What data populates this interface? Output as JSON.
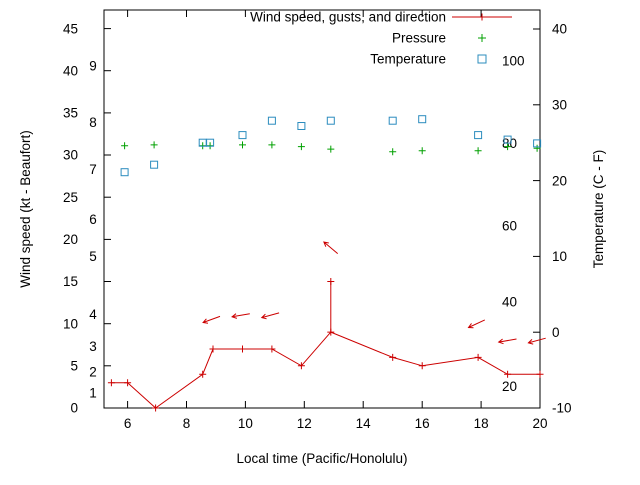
{
  "chart_data": {
    "type": "line",
    "title": "",
    "xlabel": "Local time (Pacific/Honolulu)",
    "ylabel_left": "Wind speed (kt - Beaufort)",
    "ylabel_right": "Temperature (C - F)",
    "legend_position": "top-right-inside",
    "grid": false,
    "legend": [
      {
        "label": "Wind speed, gusts, and direction",
        "marker": "line-plus",
        "color": "#cc0000"
      },
      {
        "label": "Pressure",
        "marker": "plus",
        "color": "#00a000"
      },
      {
        "label": "Temperature",
        "marker": "square",
        "color": "#2b8cbe"
      }
    ],
    "x_range": [
      5.2,
      20
    ],
    "x_ticks": [
      6,
      8,
      10,
      12,
      14,
      16,
      18,
      20
    ],
    "y_left_range": [
      0,
      47.2
    ],
    "y_left_ticks": [
      0,
      5,
      10,
      15,
      20,
      25,
      30,
      35,
      40,
      45
    ],
    "y_right_range": [
      -10,
      42.5
    ],
    "y_right_ticks": [
      -10,
      0,
      10,
      20,
      30,
      40
    ],
    "beaufort_scale": [
      {
        "b": 1,
        "kt": 1.8
      },
      {
        "b": 2,
        "kt": 4.3
      },
      {
        "b": 3,
        "kt": 7.3
      },
      {
        "b": 4,
        "kt": 11.1
      },
      {
        "b": 5,
        "kt": 18.0
      },
      {
        "b": 6,
        "kt": 22.4
      },
      {
        "b": 7,
        "kt": 28.3
      },
      {
        "b": 8,
        "kt": 33.9
      },
      {
        "b": 9,
        "kt": 40.6
      }
    ],
    "humidity_scale": [
      {
        "v": 100,
        "kt": 41.2
      },
      {
        "v": 80,
        "kt": 31.4
      },
      {
        "v": 60,
        "kt": 21.6
      },
      {
        "v": 40,
        "kt": 12.6
      },
      {
        "v": 20,
        "kt": 2.6
      }
    ],
    "series": {
      "wind_speed": {
        "name": "Wind speed, gusts, and direction",
        "color": "#cc0000",
        "units": "kt",
        "points": [
          [
            5.45,
            3
          ],
          [
            6.0,
            3
          ],
          [
            6.95,
            0
          ],
          [
            8.55,
            4
          ],
          [
            8.9,
            7
          ],
          [
            9.9,
            7
          ],
          [
            10.9,
            7
          ],
          [
            11.9,
            5
          ],
          [
            12.9,
            9
          ],
          [
            15.0,
            6
          ],
          [
            16.0,
            5
          ],
          [
            17.9,
            6
          ],
          [
            18.9,
            4
          ],
          [
            20.0,
            4
          ]
        ]
      },
      "gusts": [
        {
          "t": 12.9,
          "from": 9,
          "to": 15
        }
      ],
      "wind_direction_arrows": [
        {
          "t": 8.85,
          "kt": 10.5,
          "angle": 200
        },
        {
          "t": 9.85,
          "kt": 11.0,
          "angle": 190
        },
        {
          "t": 10.85,
          "kt": 11.0,
          "angle": 195
        },
        {
          "t": 12.9,
          "kt": 19.0,
          "angle": 140
        },
        {
          "t": 17.85,
          "kt": 10.0,
          "angle": 205
        },
        {
          "t": 18.9,
          "kt": 8.0,
          "angle": 190
        },
        {
          "t": 19.9,
          "kt": 8.0,
          "angle": 195
        }
      ],
      "pressure": {
        "name": "Pressure",
        "color": "#00a000",
        "axis": "left",
        "points": [
          [
            5.9,
            31.1
          ],
          [
            6.9,
            31.2
          ],
          [
            8.55,
            31.1
          ],
          [
            8.8,
            31.1
          ],
          [
            9.9,
            31.2
          ],
          [
            10.9,
            31.2
          ],
          [
            11.9,
            31.0
          ],
          [
            12.9,
            30.7
          ],
          [
            15.0,
            30.4
          ],
          [
            16.0,
            30.5
          ],
          [
            17.9,
            30.5
          ],
          [
            18.9,
            31.0
          ],
          [
            19.9,
            30.8
          ]
        ]
      },
      "temperature": {
        "name": "Temperature",
        "color": "#2b8cbe",
        "axis": "right",
        "units": "C",
        "points": [
          [
            5.9,
            21.1
          ],
          [
            6.9,
            22.1
          ],
          [
            8.55,
            25.0
          ],
          [
            8.8,
            25.0
          ],
          [
            9.9,
            26.0
          ],
          [
            10.9,
            27.9
          ],
          [
            11.9,
            27.2
          ],
          [
            12.9,
            27.9
          ],
          [
            15.0,
            27.9
          ],
          [
            16.0,
            28.1
          ],
          [
            17.9,
            26.0
          ],
          [
            18.9,
            25.4
          ],
          [
            19.9,
            24.9
          ]
        ]
      }
    },
    "colors": {
      "axis": "#000000",
      "background": "#ffffff"
    }
  }
}
